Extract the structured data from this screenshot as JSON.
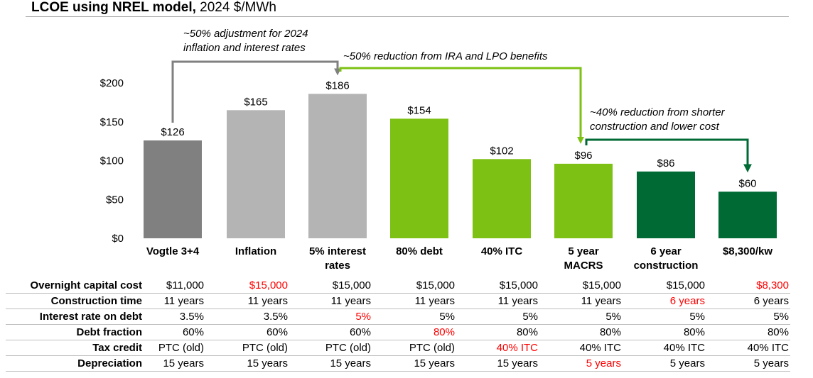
{
  "title": {
    "bold": "LCOE using NREL model,",
    "rest": " 2024 $/MWh"
  },
  "colors": {
    "dark_gray": "#808080",
    "light_gray": "#b4b4b4",
    "lime": "#7dc114",
    "dark_green": "#006a34",
    "arrow_gray": "#808080",
    "red": "#ff0000"
  },
  "chart_data": {
    "type": "bar",
    "categories": [
      "Vogtle 3+4",
      "Inflation",
      "5% interest rates",
      "80% debt",
      "40% ITC",
      "5 year MACRS",
      "6 year construction",
      "$8,300/kw"
    ],
    "category_lines": [
      [
        "Vogtle 3+4"
      ],
      [
        "Inflation"
      ],
      [
        "5% interest",
        "rates"
      ],
      [
        "80% debt"
      ],
      [
        "40% ITC"
      ],
      [
        "5 year",
        "MACRS"
      ],
      [
        "6 year",
        "construction"
      ],
      [
        "$8,300/kw"
      ]
    ],
    "values": [
      126,
      165,
      186,
      154,
      102,
      96,
      86,
      60
    ],
    "value_labels": [
      "$126",
      "$165",
      "$186",
      "$154",
      "$102",
      "$96",
      "$86",
      "$60"
    ],
    "bar_colors": [
      "dark_gray",
      "light_gray",
      "light_gray",
      "lime",
      "lime",
      "lime",
      "dark_green",
      "dark_green"
    ],
    "yticks": [
      0,
      50,
      100,
      150,
      200
    ],
    "ytick_labels": [
      "$0",
      "$50",
      "$100",
      "$150",
      "$200"
    ],
    "ylim": [
      0,
      200
    ],
    "grid": false,
    "annotations": [
      {
        "lines": [
          "~50% adjustment for 2024",
          "inflation and interest rates"
        ],
        "from_bar": 0,
        "to_bar": 2,
        "color": "arrow_gray"
      },
      {
        "lines": [
          "~50% reduction from IRA and LPO benefits"
        ],
        "from_bar": 2,
        "to_bar": 5,
        "color": "lime"
      },
      {
        "lines": [
          "~40% reduction from shorter",
          "construction and lower cost"
        ],
        "from_bar": 5,
        "to_bar": 7,
        "color": "dark_green"
      }
    ]
  },
  "table": {
    "rows": [
      {
        "label": "Overnight capital cost",
        "cells": [
          "$11,000",
          "$15,000",
          "$15,000",
          "$15,000",
          "$15,000",
          "$15,000",
          "$15,000",
          "$8,300"
        ],
        "red": [
          1,
          7
        ]
      },
      {
        "label": "Construction time",
        "cells": [
          "11 years",
          "11 years",
          "11 years",
          "11 years",
          "11 years",
          "11 years",
          "6 years",
          "6 years"
        ],
        "red": [
          6
        ]
      },
      {
        "label": "Interest rate on debt",
        "cells": [
          "3.5%",
          "3.5%",
          "5%",
          "5%",
          "5%",
          "5%",
          "5%",
          "5%"
        ],
        "red": [
          2
        ]
      },
      {
        "label": "Debt fraction",
        "cells": [
          "60%",
          "60%",
          "60%",
          "80%",
          "80%",
          "80%",
          "80%",
          "80%"
        ],
        "red": [
          3
        ]
      },
      {
        "label": "Tax credit",
        "cells": [
          "PTC (old)",
          "PTC (old)",
          "PTC (old)",
          "PTC (old)",
          "40% ITC",
          "40% ITC",
          "40% ITC",
          "40% ITC"
        ],
        "red": [
          4
        ]
      },
      {
        "label": "Depreciation",
        "cells": [
          "15 years",
          "15 years",
          "15 years",
          "15 years",
          "15 years",
          "5 years",
          "5 years",
          "5 years"
        ],
        "red": [
          5
        ]
      }
    ]
  }
}
